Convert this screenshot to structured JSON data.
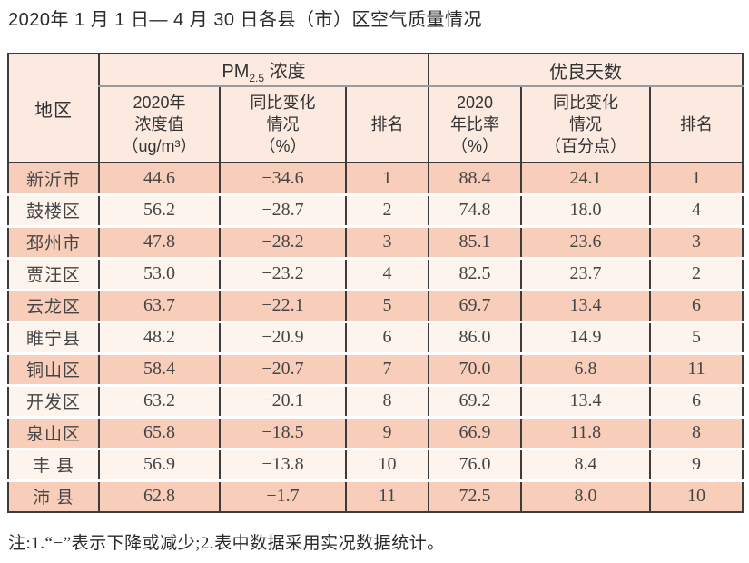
{
  "title": "2020年 1 月 1 日— 4 月 30 日各县（市）区空气质量情况",
  "table": {
    "header": {
      "region": "地区",
      "pm_group": {
        "prefix": "PM",
        "sub": "2.5",
        "suffix": " 浓度"
      },
      "good_group": "优良天数",
      "sub_headers": [
        "2020年\n浓度值\n（ug/m³）",
        "同比变化\n情况\n（%）",
        "排名",
        "2020\n年比率\n（%）",
        "同比变化\n情况\n（百分点）",
        "排名"
      ]
    },
    "rows": [
      {
        "region": "新沂市",
        "pm_value": "44.6",
        "pm_change": "−34.6",
        "pm_rank": "1",
        "good_rate": "88.4",
        "good_change": "24.1",
        "good_rank": "1"
      },
      {
        "region": "鼓楼区",
        "pm_value": "56.2",
        "pm_change": "−28.7",
        "pm_rank": "2",
        "good_rate": "74.8",
        "good_change": "18.0",
        "good_rank": "4"
      },
      {
        "region": "邳州市",
        "pm_value": "47.8",
        "pm_change": "−28.2",
        "pm_rank": "3",
        "good_rate": "85.1",
        "good_change": "23.6",
        "good_rank": "3"
      },
      {
        "region": "贾汪区",
        "pm_value": "53.0",
        "pm_change": "−23.2",
        "pm_rank": "4",
        "good_rate": "82.5",
        "good_change": "23.7",
        "good_rank": "2"
      },
      {
        "region": "云龙区",
        "pm_value": "63.7",
        "pm_change": "−22.1",
        "pm_rank": "5",
        "good_rate": "69.7",
        "good_change": "13.4",
        "good_rank": "6"
      },
      {
        "region": "睢宁县",
        "pm_value": "48.2",
        "pm_change": "−20.9",
        "pm_rank": "6",
        "good_rate": "86.0",
        "good_change": "14.9",
        "good_rank": "5"
      },
      {
        "region": "铜山区",
        "pm_value": "58.4",
        "pm_change": "−20.7",
        "pm_rank": "7",
        "good_rate": "70.0",
        "good_change": "6.8",
        "good_rank": "11"
      },
      {
        "region": "开发区",
        "pm_value": "63.2",
        "pm_change": "−20.1",
        "pm_rank": "8",
        "good_rate": "69.2",
        "good_change": "13.4",
        "good_rank": "6"
      },
      {
        "region": "泉山区",
        "pm_value": "65.8",
        "pm_change": "−18.5",
        "pm_rank": "9",
        "good_rate": "66.9",
        "good_change": "11.8",
        "good_rank": "8"
      },
      {
        "region": "丰 县",
        "pm_value": "56.9",
        "pm_change": "−13.8",
        "pm_rank": "10",
        "good_rate": "76.0",
        "good_change": "8.4",
        "good_rank": "9"
      },
      {
        "region": "沛 县",
        "pm_value": "62.8",
        "pm_change": "−1.7",
        "pm_rank": "11",
        "good_rate": "72.5",
        "good_change": "8.0",
        "good_rank": "10"
      }
    ]
  },
  "note": "注:1.“−”表示下降或减少;2.表中数据采用实况数据统计。",
  "colors": {
    "row_odd": "#f8ceba",
    "row_even": "#fdf4ee",
    "header_bg": "#fceae1",
    "border_dark": "#3c3c3c",
    "border_gray": "#9a9a9a",
    "text": "#454545"
  }
}
